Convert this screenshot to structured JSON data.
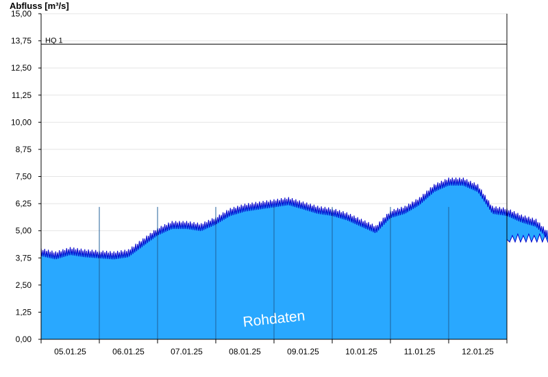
{
  "chart_data": {
    "type": "area",
    "ylabel": "Abfluss [m³/s]",
    "ylim": [
      0,
      15
    ],
    "yticks": [
      "0,00",
      "1,25",
      "2,50",
      "3,75",
      "5,00",
      "6,25",
      "7,50",
      "8,75",
      "10,00",
      "11,25",
      "12,50",
      "13,75",
      "15,00"
    ],
    "x_range_days": [
      "04.01.25",
      "12.01.25"
    ],
    "xticks": [
      "05.01.25",
      "06.01.25",
      "07.01.25",
      "08.01.25",
      "09.01.25",
      "10.01.25",
      "11.01.25",
      "12.01.25"
    ],
    "grid": "horizontal",
    "reference_line": {
      "label": "HQ 1",
      "value": 13.6
    },
    "watermark": "Rohdaten",
    "colors": {
      "fill": "#29a8ff",
      "line": "#0000cc",
      "reference": "#000000"
    },
    "series": [
      {
        "x": [
          "04.01.25 00:00",
          "04.01.25 06:00",
          "04.01.25 12:00",
          "04.01.25 18:00",
          "05.01.25 00:00",
          "05.01.25 06:00",
          "05.01.25 12:00",
          "05.01.25 18:00",
          "06.01.25 00:00",
          "06.01.25 06:00",
          "06.01.25 12:00",
          "06.01.25 18:00",
          "07.01.25 00:00",
          "07.01.25 06:00",
          "07.01.25 12:00",
          "07.01.25 18:00",
          "08.01.25 00:00",
          "08.01.25 06:00",
          "08.01.25 12:00",
          "08.01.25 18:00",
          "09.01.25 00:00",
          "09.01.25 06:00",
          "09.01.25 12:00",
          "09.01.25 18:00",
          "10.01.25 00:00",
          "10.01.25 06:00",
          "10.01.25 12:00",
          "10.01.25 18:00",
          "11.01.25 00:00",
          "11.01.25 06:00",
          "11.01.25 12:00",
          "11.01.25 18:00",
          "12.01.25 00:00",
          "12.01.25 06:00",
          "12.01.25 12:00",
          "12.01.25 18:00"
        ],
        "y": [
          3.95,
          3.8,
          4.0,
          3.9,
          3.85,
          3.8,
          3.9,
          4.4,
          4.9,
          5.2,
          5.2,
          5.1,
          5.4,
          5.8,
          6.0,
          6.1,
          6.2,
          6.3,
          6.1,
          5.9,
          5.8,
          5.6,
          5.3,
          5.0,
          5.7,
          5.9,
          6.3,
          6.9,
          7.2,
          7.2,
          6.9,
          5.9,
          5.8,
          5.5,
          5.3,
          4.6
        ]
      }
    ]
  }
}
